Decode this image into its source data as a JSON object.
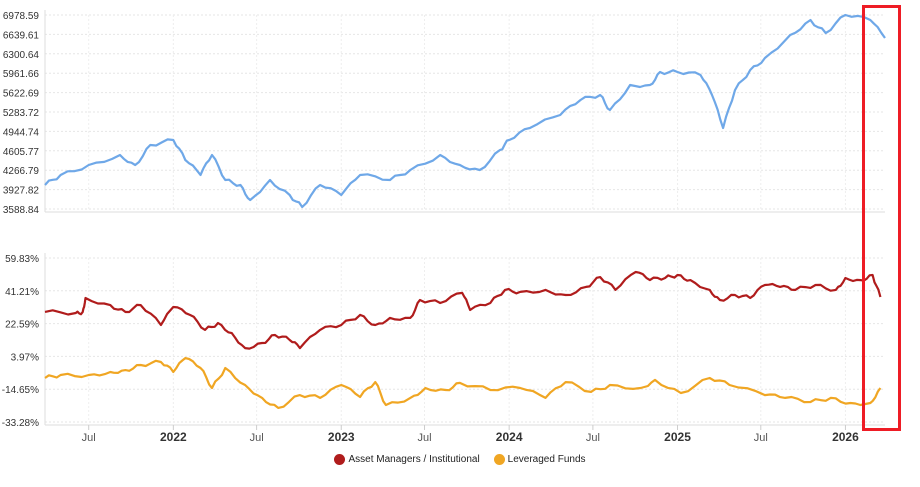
{
  "chart_data": [
    {
      "type": "line",
      "yticks": [
        "3588.84",
        "3927.82",
        "4266.79",
        "4605.77",
        "4944.74",
        "5283.72",
        "5622.69",
        "5961.66",
        "6300.64",
        "6639.61",
        "6978.59"
      ],
      "ylim": [
        3588.84,
        6978.59
      ],
      "xlim": [
        "2021-03-28",
        "2026-03-28"
      ],
      "grid": true,
      "series": [
        {
          "color": "#6fa8e8",
          "points": [
            [
              "2021-03-28",
              4008
            ],
            [
              "2021-05-01",
              4183
            ],
            [
              "2021-07-01",
              4357
            ],
            [
              "2021-09-07",
              4532
            ],
            [
              "2021-10-10",
              4357
            ],
            [
              "2021-11-12",
              4707
            ],
            [
              "2022-01-01",
              4794
            ],
            [
              "2022-01-27",
              4445
            ],
            [
              "2022-03-01",
              4183
            ],
            [
              "2022-03-26",
              4532
            ],
            [
              "2022-04-24",
              4095
            ],
            [
              "2022-05-27",
              4008
            ],
            [
              "2022-06-17",
              3746
            ],
            [
              "2022-07-30",
              4095
            ],
            [
              "2022-09-11",
              3833
            ],
            [
              "2022-10-08",
              3624
            ],
            [
              "2022-11-16",
              4008
            ],
            [
              "2023-01-01",
              3833
            ],
            [
              "2023-02-11",
              4183
            ],
            [
              "2023-04-17",
              4095
            ],
            [
              "2023-05-31",
              4270
            ],
            [
              "2023-08-04",
              4532
            ],
            [
              "2023-09-16",
              4357
            ],
            [
              "2023-10-29",
              4270
            ],
            [
              "2023-12-12",
              4620
            ],
            [
              "2024-01-01",
              4794
            ],
            [
              "2024-02-15",
              5004
            ],
            [
              "2024-04-21",
              5231
            ],
            [
              "2024-06-04",
              5493
            ],
            [
              "2024-07-17",
              5580
            ],
            [
              "2024-08-07",
              5318
            ],
            [
              "2024-09-20",
              5755
            ],
            [
              "2024-11-02",
              5755
            ],
            [
              "2024-11-24",
              5982
            ],
            [
              "2025-01-01",
              5982
            ],
            [
              "2025-02-20",
              5930
            ],
            [
              "2025-03-17",
              5580
            ],
            [
              "2025-04-10",
              5004
            ],
            [
              "2025-05-06",
              5667
            ],
            [
              "2025-06-08",
              6017
            ],
            [
              "2025-07-10",
              6227
            ],
            [
              "2025-09-03",
              6629
            ],
            [
              "2025-10-17",
              6891
            ],
            [
              "2025-11-19",
              6664
            ],
            [
              "2026-01-01",
              6978
            ],
            [
              "2026-02-24",
              6891
            ],
            [
              "2026-03-28",
              6576
            ]
          ]
        }
      ]
    },
    {
      "type": "line",
      "yticks": [
        "-33.28%",
        "-14.65%",
        "3.97%",
        "22.59%",
        "41.21%",
        "59.83%"
      ],
      "ylim": [
        -33.28,
        59.83
      ],
      "xlim": [
        "2021-03-28",
        "2026-03-28"
      ],
      "grid": true,
      "xticks": [
        {
          "label": "Jul",
          "date": "2021-07-01",
          "year": false
        },
        {
          "label": "2022",
          "date": "2022-01-01",
          "year": true
        },
        {
          "label": "Jul",
          "date": "2022-07-01",
          "year": false
        },
        {
          "label": "2023",
          "date": "2023-01-01",
          "year": true
        },
        {
          "label": "Jul",
          "date": "2023-07-01",
          "year": false
        },
        {
          "label": "2024",
          "date": "2024-01-01",
          "year": true
        },
        {
          "label": "Jul",
          "date": "2024-07-01",
          "year": false
        },
        {
          "label": "2025",
          "date": "2025-01-01",
          "year": true
        },
        {
          "label": "Jul",
          "date": "2025-07-01",
          "year": false
        },
        {
          "label": "2026",
          "date": "2026-01-01",
          "year": true
        }
      ],
      "legend_placement": "bottom",
      "series": [
        {
          "name": "Asset Managers / Institutional",
          "color": "#b01c1c",
          "points": [
            [
              "2021-03-28",
              29.2
            ],
            [
              "2021-06-03",
              28.6
            ],
            [
              "2021-06-18",
              29.2
            ],
            [
              "2021-06-24",
              37.1
            ],
            [
              "2021-08-17",
              33.1
            ],
            [
              "2021-09-19",
              29.2
            ],
            [
              "2021-10-22",
              33.1
            ],
            [
              "2021-12-05",
              21.8
            ],
            [
              "2022-01-01",
              32.0
            ],
            [
              "2022-02-06",
              27.5
            ],
            [
              "2022-03-11",
              19.0
            ],
            [
              "2022-04-08",
              22.9
            ],
            [
              "2022-05-08",
              17.2
            ],
            [
              "2022-06-06",
              8.7
            ],
            [
              "2022-07-13",
              11.6
            ],
            [
              "2022-08-10",
              16.1
            ],
            [
              "2022-09-11",
              13.3
            ],
            [
              "2022-10-03",
              8.7
            ],
            [
              "2022-11-16",
              19.0
            ],
            [
              "2023-01-01",
              21.8
            ],
            [
              "2023-02-11",
              27.5
            ],
            [
              "2023-03-16",
              21.8
            ],
            [
              "2023-04-17",
              25.8
            ],
            [
              "2023-05-31",
              25.8
            ],
            [
              "2023-06-21",
              36.0
            ],
            [
              "2023-08-04",
              34.3
            ],
            [
              "2023-09-21",
              40.0
            ],
            [
              "2023-10-08",
              30.3
            ],
            [
              "2023-11-21",
              34.3
            ],
            [
              "2023-12-23",
              41.7
            ],
            [
              "2024-01-25",
              40.6
            ],
            [
              "2024-03-20",
              41.7
            ],
            [
              "2024-05-03",
              38.8
            ],
            [
              "2024-06-16",
              43.4
            ],
            [
              "2024-07-17",
              49.0
            ],
            [
              "2024-08-19",
              41.7
            ],
            [
              "2024-10-02",
              51.9
            ],
            [
              "2024-11-02",
              47.3
            ],
            [
              "2024-12-05",
              48.5
            ],
            [
              "2025-01-01",
              50.2
            ],
            [
              "2025-01-29",
              47.3
            ],
            [
              "2025-03-12",
              41.7
            ],
            [
              "2025-04-03",
              36.0
            ],
            [
              "2025-05-06",
              38.8
            ],
            [
              "2025-06-08",
              37.1
            ],
            [
              "2025-07-10",
              44.5
            ],
            [
              "2025-08-12",
              43.4
            ],
            [
              "2025-09-14",
              41.7
            ],
            [
              "2025-10-28",
              44.5
            ],
            [
              "2025-12-11",
              41.7
            ],
            [
              "2026-01-01",
              48.5
            ],
            [
              "2026-02-03",
              47.3
            ],
            [
              "2026-03-01",
              50.2
            ],
            [
              "2026-03-18",
              37.7
            ]
          ]
        },
        {
          "name": "Leveraged Funds",
          "color": "#f0a623",
          "points": [
            [
              "2021-03-28",
              -8.3
            ],
            [
              "2021-05-01",
              -6.6
            ],
            [
              "2021-07-01",
              -6.6
            ],
            [
              "2021-08-17",
              -4.9
            ],
            [
              "2021-09-19",
              -3.8
            ],
            [
              "2021-10-22",
              -0.9
            ],
            [
              "2021-12-05",
              0.8
            ],
            [
              "2022-01-01",
              -4.9
            ],
            [
              "2022-01-27",
              3.0
            ],
            [
              "2022-03-01",
              -2.6
            ],
            [
              "2022-03-26",
              -14.0
            ],
            [
              "2022-04-24",
              -2.6
            ],
            [
              "2022-06-06",
              -12.3
            ],
            [
              "2022-07-13",
              -19.6
            ],
            [
              "2022-08-17",
              -25.3
            ],
            [
              "2022-10-03",
              -18.0
            ],
            [
              "2022-11-16",
              -19.6
            ],
            [
              "2023-01-01",
              -12.3
            ],
            [
              "2023-02-11",
              -19.1
            ],
            [
              "2023-03-16",
              -10.6
            ],
            [
              "2023-04-08",
              -23.6
            ],
            [
              "2023-05-31",
              -19.6
            ],
            [
              "2023-07-03",
              -14.0
            ],
            [
              "2023-08-16",
              -15.1
            ],
            [
              "2023-09-16",
              -11.1
            ],
            [
              "2023-11-21",
              -15.1
            ],
            [
              "2024-01-25",
              -14.0
            ],
            [
              "2024-03-20",
              -19.6
            ],
            [
              "2024-05-03",
              -10.6
            ],
            [
              "2024-06-27",
              -16.2
            ],
            [
              "2024-08-07",
              -12.3
            ],
            [
              "2024-10-13",
              -14.0
            ],
            [
              "2024-11-13",
              -9.4
            ],
            [
              "2025-01-08",
              -16.8
            ],
            [
              "2025-03-12",
              -8.3
            ],
            [
              "2025-04-24",
              -12.3
            ],
            [
              "2025-07-10",
              -18.0
            ],
            [
              "2025-08-23",
              -19.6
            ],
            [
              "2025-10-17",
              -21.9
            ],
            [
              "2025-11-30",
              -19.6
            ],
            [
              "2026-01-12",
              -22.5
            ],
            [
              "2026-02-24",
              -22.5
            ],
            [
              "2026-03-18",
              -14.0
            ]
          ]
        }
      ]
    }
  ],
  "annotation": {
    "color": "#ee1c25"
  }
}
